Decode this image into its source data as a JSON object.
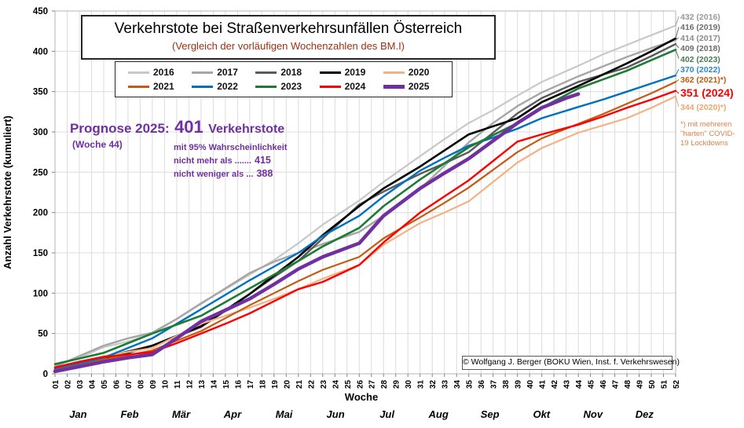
{
  "prognosis": {
    "label": "Prognose 2025:",
    "value": "401",
    "unit": "Verkehrstote",
    "week_note": "(Woche 44)",
    "confidence": "mit 95% Wahrscheinlichkeit",
    "upper_label": "nicht mehr als .......",
    "upper_value": "415",
    "lower_label": "nicht weniger als ...",
    "lower_value": "388",
    "color": "#7030a0"
  },
  "right_labels": [
    {
      "year": "2016",
      "text": "432 (2016)",
      "color": "#9a9a9a",
      "size": "normal",
      "gap": 0
    },
    {
      "year": "2019",
      "text": "416 (2019)",
      "color": "#6d6d6d",
      "size": "normal",
      "gap": 0
    },
    {
      "year": "2017",
      "text": "414 (2017)",
      "color": "#8a8a8a",
      "size": "normal",
      "gap": 0
    },
    {
      "year": "2018",
      "text": "409 (2018)",
      "color": "#6d6d6d",
      "size": "normal",
      "gap": 0
    },
    {
      "year": "2023",
      "text": "402 (2023)",
      "color": "#4a7b52",
      "size": "normal",
      "gap": 0
    },
    {
      "year": "2022",
      "text": "370 (2022)",
      "color": "#2f86d6",
      "size": "normal",
      "gap": 0
    },
    {
      "year": "2021",
      "text": "362 (2021)*)",
      "color": "#c55a11",
      "size": "normal",
      "gap": 0
    },
    {
      "year": "2024",
      "text": "351 (2024)",
      "color": "#ff0000",
      "size": "large",
      "gap": 2
    },
    {
      "year": "2020",
      "text": "344 (2020)*)",
      "color": "#eda66f",
      "size": "normal",
      "gap": 0
    }
  ],
  "footnote": {
    "color": "#dd8047",
    "lines": [
      "*) mit mehreren",
      "\"harten\" COVID-",
      "19 Lockdowns"
    ]
  },
  "copyright": {
    "text": "© Wolfgang J. Berger (BOKU Wien, Inst. f. Verkehrswesen)"
  },
  "chart_data": {
    "type": "line",
    "title": "Verkehrstote bei Straßenverkehrsunfällen Österreich",
    "subtitle": "(Vergleich der vorläufigen Wochenzahlen  des BM.I)",
    "xlabel": "Woche",
    "ylabel": "Anzahl Verkehrstote (kumuliert)",
    "ylim": [
      0,
      450
    ],
    "xlim_weeks": [
      1,
      52
    ],
    "grid": true,
    "legend_position": "top",
    "y_ticks": [
      0,
      50,
      100,
      150,
      200,
      250,
      300,
      350,
      400,
      450
    ],
    "x_ticks": [
      "01",
      "02",
      "03",
      "04",
      "05",
      "06",
      "07",
      "08",
      "09",
      "10",
      "11",
      "12",
      "13",
      "14",
      "15",
      "16",
      "17",
      "18",
      "19",
      "20",
      "21",
      "22",
      "23",
      "24",
      "25",
      "26",
      "27",
      "28",
      "29",
      "30",
      "31",
      "32",
      "33",
      "34",
      "35",
      "36",
      "37",
      "38",
      "39",
      "40",
      "41",
      "42",
      "43",
      "44",
      "45",
      "46",
      "47",
      "48",
      "49",
      "50",
      "51",
      "52"
    ],
    "months": [
      "Jan",
      "Feb",
      "Mär",
      "Apr",
      "Mai",
      "Jun",
      "Jul",
      "Aug",
      "Sep",
      "Okt",
      "Nov",
      "Dez"
    ],
    "series": [
      {
        "name": "2016",
        "color": "#c8c8c8",
        "width": 2.2,
        "final_value": 432,
        "points": [
          [
            1,
            10
          ],
          [
            3,
            20
          ],
          [
            5,
            33
          ],
          [
            7,
            40
          ],
          [
            9,
            50
          ],
          [
            11,
            68
          ],
          [
            13,
            88
          ],
          [
            15,
            105
          ],
          [
            17,
            123
          ],
          [
            19,
            141
          ],
          [
            21,
            162
          ],
          [
            23,
            185
          ],
          [
            26,
            215
          ],
          [
            28,
            238
          ],
          [
            31,
            270
          ],
          [
            33,
            291
          ],
          [
            35,
            311
          ],
          [
            37,
            327
          ],
          [
            39,
            345
          ],
          [
            41,
            362
          ],
          [
            44,
            382
          ],
          [
            46,
            396
          ],
          [
            48,
            408
          ],
          [
            50,
            420
          ],
          [
            52,
            432
          ]
        ]
      },
      {
        "name": "2017",
        "color": "#a6a6a6",
        "width": 2.4,
        "final_value": 414,
        "points": [
          [
            1,
            9
          ],
          [
            3,
            22
          ],
          [
            5,
            35
          ],
          [
            7,
            44
          ],
          [
            9,
            51
          ],
          [
            11,
            68
          ],
          [
            13,
            87
          ],
          [
            15,
            106
          ],
          [
            17,
            125
          ],
          [
            19,
            139
          ],
          [
            21,
            150
          ],
          [
            23,
            161
          ],
          [
            26,
            176
          ],
          [
            28,
            196
          ],
          [
            31,
            229
          ],
          [
            33,
            258
          ],
          [
            35,
            287
          ],
          [
            37,
            311
          ],
          [
            39,
            332
          ],
          [
            41,
            349
          ],
          [
            44,
            369
          ],
          [
            46,
            381
          ],
          [
            48,
            393
          ],
          [
            50,
            404
          ],
          [
            52,
            414
          ]
        ]
      },
      {
        "name": "2018",
        "color": "#5a5a5a",
        "width": 2.4,
        "final_value": 409,
        "points": [
          [
            1,
            5
          ],
          [
            3,
            12
          ],
          [
            5,
            20
          ],
          [
            7,
            28
          ],
          [
            9,
            35
          ],
          [
            11,
            46
          ],
          [
            13,
            58
          ],
          [
            15,
            78
          ],
          [
            17,
            99
          ],
          [
            19,
            120
          ],
          [
            21,
            140
          ],
          [
            23,
            168
          ],
          [
            26,
            210
          ],
          [
            28,
            226
          ],
          [
            31,
            248
          ],
          [
            33,
            261
          ],
          [
            35,
            275
          ],
          [
            37,
            299
          ],
          [
            39,
            323
          ],
          [
            41,
            342
          ],
          [
            44,
            362
          ],
          [
            46,
            371
          ],
          [
            48,
            380
          ],
          [
            50,
            394
          ],
          [
            52,
            409
          ]
        ]
      },
      {
        "name": "2019",
        "color": "#000000",
        "width": 2.6,
        "final_value": 416,
        "points": [
          [
            1,
            6
          ],
          [
            3,
            12
          ],
          [
            5,
            18
          ],
          [
            7,
            26
          ],
          [
            9,
            35
          ],
          [
            11,
            47
          ],
          [
            13,
            59
          ],
          [
            15,
            79
          ],
          [
            17,
            99
          ],
          [
            19,
            122
          ],
          [
            21,
            145
          ],
          [
            23,
            172
          ],
          [
            26,
            208
          ],
          [
            28,
            230
          ],
          [
            31,
            257
          ],
          [
            33,
            277
          ],
          [
            35,
            297
          ],
          [
            37,
            307
          ],
          [
            39,
            317
          ],
          [
            41,
            337
          ],
          [
            44,
            357
          ],
          [
            46,
            371
          ],
          [
            48,
            385
          ],
          [
            50,
            400
          ],
          [
            52,
            416
          ]
        ]
      },
      {
        "name": "2020",
        "color": "#f4b183",
        "width": 2.2,
        "final_value": 344,
        "points": [
          [
            1,
            8
          ],
          [
            3,
            15
          ],
          [
            5,
            22
          ],
          [
            7,
            27
          ],
          [
            9,
            32
          ],
          [
            11,
            47
          ],
          [
            13,
            62
          ],
          [
            15,
            72
          ],
          [
            17,
            82
          ],
          [
            19,
            93
          ],
          [
            21,
            105
          ],
          [
            23,
            118
          ],
          [
            26,
            135
          ],
          [
            28,
            160
          ],
          [
            31,
            187
          ],
          [
            33,
            200
          ],
          [
            35,
            214
          ],
          [
            37,
            238
          ],
          [
            39,
            262
          ],
          [
            41,
            280
          ],
          [
            44,
            299
          ],
          [
            46,
            308
          ],
          [
            48,
            317
          ],
          [
            50,
            330
          ],
          [
            52,
            344
          ]
        ]
      },
      {
        "name": "2021",
        "color": "#c55a11",
        "width": 2.2,
        "final_value": 362,
        "points": [
          [
            1,
            6
          ],
          [
            3,
            12
          ],
          [
            5,
            18
          ],
          [
            7,
            23
          ],
          [
            9,
            29
          ],
          [
            11,
            41
          ],
          [
            13,
            53
          ],
          [
            15,
            69
          ],
          [
            17,
            85
          ],
          [
            19,
            100
          ],
          [
            21,
            115
          ],
          [
            23,
            129
          ],
          [
            26,
            145
          ],
          [
            28,
            168
          ],
          [
            31,
            194
          ],
          [
            33,
            212
          ],
          [
            35,
            231
          ],
          [
            37,
            253
          ],
          [
            39,
            275
          ],
          [
            41,
            292
          ],
          [
            44,
            310
          ],
          [
            46,
            322
          ],
          [
            48,
            335
          ],
          [
            50,
            348
          ],
          [
            52,
            362
          ]
        ]
      },
      {
        "name": "2022",
        "color": "#0070c0",
        "width": 2.4,
        "final_value": 370,
        "points": [
          [
            1,
            7
          ],
          [
            3,
            13
          ],
          [
            5,
            20
          ],
          [
            7,
            32
          ],
          [
            9,
            44
          ],
          [
            11,
            62
          ],
          [
            13,
            80
          ],
          [
            15,
            98
          ],
          [
            17,
            116
          ],
          [
            19,
            133
          ],
          [
            21,
            150
          ],
          [
            23,
            171
          ],
          [
            26,
            196
          ],
          [
            28,
            220
          ],
          [
            31,
            252
          ],
          [
            33,
            268
          ],
          [
            35,
            283
          ],
          [
            37,
            293
          ],
          [
            39,
            304
          ],
          [
            41,
            317
          ],
          [
            44,
            331
          ],
          [
            46,
            340
          ],
          [
            48,
            350
          ],
          [
            50,
            360
          ],
          [
            52,
            370
          ]
        ]
      },
      {
        "name": "2023",
        "color": "#1e7b34",
        "width": 2.6,
        "final_value": 402,
        "points": [
          [
            1,
            12
          ],
          [
            3,
            19
          ],
          [
            5,
            26
          ],
          [
            7,
            38
          ],
          [
            9,
            50
          ],
          [
            11,
            61
          ],
          [
            13,
            72
          ],
          [
            15,
            89
          ],
          [
            17,
            106
          ],
          [
            19,
            123
          ],
          [
            21,
            140
          ],
          [
            23,
            158
          ],
          [
            26,
            181
          ],
          [
            28,
            208
          ],
          [
            31,
            241
          ],
          [
            33,
            261
          ],
          [
            35,
            281
          ],
          [
            37,
            296
          ],
          [
            39,
            311
          ],
          [
            41,
            330
          ],
          [
            44,
            354
          ],
          [
            46,
            365
          ],
          [
            48,
            376
          ],
          [
            50,
            389
          ],
          [
            52,
            402
          ]
        ]
      },
      {
        "name": "2024",
        "color": "#ff0000",
        "width": 2.4,
        "final_value": 351,
        "points": [
          [
            1,
            8
          ],
          [
            3,
            15
          ],
          [
            5,
            21
          ],
          [
            7,
            24
          ],
          [
            9,
            27
          ],
          [
            11,
            38
          ],
          [
            13,
            50
          ],
          [
            15,
            62
          ],
          [
            17,
            75
          ],
          [
            19,
            90
          ],
          [
            21,
            105
          ],
          [
            23,
            114
          ],
          [
            26,
            135
          ],
          [
            28,
            163
          ],
          [
            31,
            200
          ],
          [
            33,
            220
          ],
          [
            35,
            240
          ],
          [
            37,
            264
          ],
          [
            39,
            288
          ],
          [
            41,
            297
          ],
          [
            44,
            309
          ],
          [
            46,
            319
          ],
          [
            48,
            330
          ],
          [
            50,
            340
          ],
          [
            52,
            351
          ]
        ]
      },
      {
        "name": "2025",
        "color": "#7030a0",
        "width": 4.5,
        "final_value": 347,
        "points": [
          [
            1,
            3
          ],
          [
            3,
            9
          ],
          [
            5,
            15
          ],
          [
            7,
            20
          ],
          [
            9,
            24
          ],
          [
            11,
            44
          ],
          [
            13,
            65
          ],
          [
            15,
            79
          ],
          [
            17,
            93
          ],
          [
            19,
            111
          ],
          [
            21,
            130
          ],
          [
            23,
            145
          ],
          [
            26,
            162
          ],
          [
            28,
            196
          ],
          [
            31,
            230
          ],
          [
            33,
            249
          ],
          [
            35,
            267
          ],
          [
            37,
            289
          ],
          [
            39,
            311
          ],
          [
            41,
            330
          ],
          [
            43,
            342
          ],
          [
            44,
            347
          ]
        ]
      }
    ]
  }
}
